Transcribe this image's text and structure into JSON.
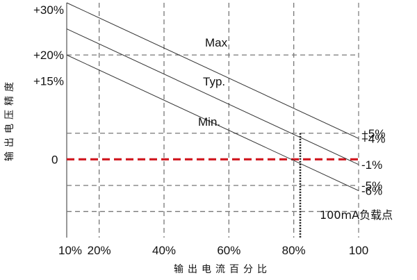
{
  "chart_data": {
    "type": "line",
    "title": "",
    "xlabel": "输出电流百分比",
    "ylabel": "输出电压精度",
    "xlim": [
      10,
      100
    ],
    "ylim": [
      -15,
      30
    ],
    "x_ticks": [
      {
        "value": 10,
        "label": "10%"
      },
      {
        "value": 20,
        "label": "20%"
      },
      {
        "value": 40,
        "label": "40%"
      },
      {
        "value": 60,
        "label": "60%"
      },
      {
        "value": 80,
        "label": "80%"
      },
      {
        "value": 100,
        "label": "100"
      }
    ],
    "y_ticks_left": [
      {
        "value": 30,
        "label": "+30%"
      },
      {
        "value": 20,
        "label": "+20%"
      },
      {
        "value": 15,
        "label": "+15%"
      },
      {
        "value": 0,
        "label": "0"
      }
    ],
    "series": [
      {
        "name": "Max",
        "x": [
          10,
          100
        ],
        "y": [
          30,
          4
        ],
        "end_label": "+4%"
      },
      {
        "name": "Typ.",
        "x": [
          10,
          100
        ],
        "y": [
          25,
          -1
        ],
        "end_label": "-1%"
      },
      {
        "name": "Min.",
        "x": [
          10,
          100
        ],
        "y": [
          20,
          -6
        ],
        "end_label": "-6%"
      }
    ],
    "right_labels": [
      {
        "value": 5,
        "label": "+5%"
      },
      {
        "value": -5,
        "label": "-5%"
      }
    ],
    "dashed_x": [
      20,
      40,
      60,
      80
    ],
    "dashed_y": [
      20,
      5,
      -5,
      -10
    ],
    "zero_line": {
      "value": 0,
      "color": "#d0161e"
    },
    "marker_x": 82,
    "marker_label": "100mA负载点",
    "grid": true
  }
}
